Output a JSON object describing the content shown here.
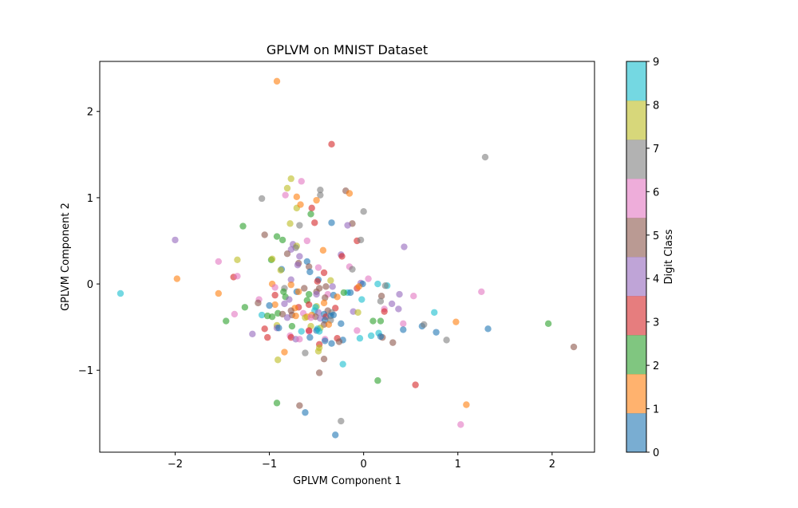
{
  "chart_data": {
    "type": "scatter",
    "title": "GPLVM on MNIST Dataset",
    "xlabel": "GPLVM Component 1",
    "ylabel": "GPLVM Component 2",
    "xlim": [
      -2.8,
      2.45
    ],
    "ylim": [
      -1.95,
      2.58
    ],
    "xticks": [
      -2,
      -1,
      0,
      1,
      2
    ],
    "yticks": [
      -1,
      0,
      1,
      2
    ],
    "grid": false,
    "colorbar": {
      "label": "Digit Class",
      "ticks": [
        0,
        1,
        2,
        3,
        4,
        5,
        6,
        7,
        8,
        9
      ],
      "colors": [
        "#1f77b4",
        "#ff7f0e",
        "#2ca02c",
        "#d62728",
        "#9467bd",
        "#8c564b",
        "#e377c2",
        "#7f7f7f",
        "#bcbd22",
        "#17becf"
      ]
    },
    "point_alpha": 0.6,
    "points": [
      {
        "x": -0.92,
        "y": 2.35,
        "c": 1
      },
      {
        "x": -0.34,
        "y": 1.62,
        "c": 3
      },
      {
        "x": 1.29,
        "y": 1.47,
        "c": 7
      },
      {
        "x": -0.77,
        "y": 1.22,
        "c": 8
      },
      {
        "x": -0.66,
        "y": 1.19,
        "c": 6
      },
      {
        "x": -0.81,
        "y": 1.11,
        "c": 8
      },
      {
        "x": -0.46,
        "y": 1.09,
        "c": 7
      },
      {
        "x": -0.19,
        "y": 1.08,
        "c": 5
      },
      {
        "x": -0.15,
        "y": 1.05,
        "c": 1
      },
      {
        "x": -0.83,
        "y": 1.03,
        "c": 6
      },
      {
        "x": -0.46,
        "y": 1.03,
        "c": 7
      },
      {
        "x": -0.71,
        "y": 1.01,
        "c": 1
      },
      {
        "x": -1.08,
        "y": 0.99,
        "c": 7
      },
      {
        "x": -0.5,
        "y": 0.97,
        "c": 1
      },
      {
        "x": -0.71,
        "y": 0.88,
        "c": 8
      },
      {
        "x": -0.67,
        "y": 0.92,
        "c": 1
      },
      {
        "x": -0.55,
        "y": 0.88,
        "c": 3
      },
      {
        "x": 0.0,
        "y": 0.84,
        "c": 7
      },
      {
        "x": -0.56,
        "y": 0.81,
        "c": 2
      },
      {
        "x": -0.52,
        "y": 0.71,
        "c": 3
      },
      {
        "x": -0.34,
        "y": 0.71,
        "c": 0
      },
      {
        "x": -0.78,
        "y": 0.7,
        "c": 8
      },
      {
        "x": -0.68,
        "y": 0.68,
        "c": 7
      },
      {
        "x": -0.12,
        "y": 0.7,
        "c": 5
      },
      {
        "x": -0.17,
        "y": 0.68,
        "c": 4
      },
      {
        "x": -1.28,
        "y": 0.67,
        "c": 2
      },
      {
        "x": -1.05,
        "y": 0.57,
        "c": 5
      },
      {
        "x": -0.92,
        "y": 0.55,
        "c": 2
      },
      {
        "x": -0.6,
        "y": 0.5,
        "c": 6
      },
      {
        "x": -0.86,
        "y": 0.51,
        "c": 2
      },
      {
        "x": -2.0,
        "y": 0.51,
        "c": 4
      },
      {
        "x": -0.07,
        "y": 0.5,
        "c": 3
      },
      {
        "x": -0.03,
        "y": 0.51,
        "c": 7
      },
      {
        "x": -0.75,
        "y": 0.46,
        "c": 4
      },
      {
        "x": 0.43,
        "y": 0.43,
        "c": 4
      },
      {
        "x": -0.71,
        "y": 0.44,
        "c": 8
      },
      {
        "x": -0.72,
        "y": 0.42,
        "c": 7
      },
      {
        "x": -0.43,
        "y": 0.39,
        "c": 1
      },
      {
        "x": -0.77,
        "y": 0.4,
        "c": 4
      },
      {
        "x": -0.81,
        "y": 0.35,
        "c": 5
      },
      {
        "x": -0.24,
        "y": 0.34,
        "c": 4
      },
      {
        "x": -0.23,
        "y": 0.32,
        "c": 3
      },
      {
        "x": -0.68,
        "y": 0.32,
        "c": 4
      },
      {
        "x": -1.34,
        "y": 0.28,
        "c": 8
      },
      {
        "x": -0.98,
        "y": 0.28,
        "c": 2
      },
      {
        "x": -0.97,
        "y": 0.29,
        "c": 8
      },
      {
        "x": -0.6,
        "y": 0.26,
        "c": 0
      },
      {
        "x": -1.54,
        "y": 0.26,
        "c": 6
      },
      {
        "x": -0.69,
        "y": 0.24,
        "c": 5
      },
      {
        "x": -0.7,
        "y": 0.22,
        "c": 4
      },
      {
        "x": -0.58,
        "y": 0.2,
        "c": 5
      },
      {
        "x": -0.15,
        "y": 0.2,
        "c": 6
      },
      {
        "x": -0.48,
        "y": 0.19,
        "c": 6
      },
      {
        "x": -0.87,
        "y": 0.17,
        "c": 0
      },
      {
        "x": -0.12,
        "y": 0.17,
        "c": 7
      },
      {
        "x": -0.88,
        "y": 0.16,
        "c": 8
      },
      {
        "x": -0.57,
        "y": 0.14,
        "c": 0
      },
      {
        "x": -0.42,
        "y": 0.13,
        "c": 3
      },
      {
        "x": -1.38,
        "y": 0.08,
        "c": 3
      },
      {
        "x": -1.34,
        "y": 0.09,
        "c": 6
      },
      {
        "x": -1.98,
        "y": 0.06,
        "c": 1
      },
      {
        "x": 0.05,
        "y": 0.06,
        "c": 6
      },
      {
        "x": -0.77,
        "y": 0.05,
        "c": 4
      },
      {
        "x": -0.48,
        "y": 0.05,
        "c": 0
      },
      {
        "x": -0.35,
        "y": 0.04,
        "c": 8
      },
      {
        "x": -0.49,
        "y": 0.03,
        "c": 3
      },
      {
        "x": -0.97,
        "y": 0.0,
        "c": 1
      },
      {
        "x": -0.03,
        "y": 0.01,
        "c": 4
      },
      {
        "x": -0.01,
        "y": 0.0,
        "c": 0
      },
      {
        "x": 0.15,
        "y": 0.0,
        "c": 9
      },
      {
        "x": 0.25,
        "y": -0.02,
        "c": 9
      },
      {
        "x": 0.23,
        "y": -0.02,
        "c": 7
      },
      {
        "x": -0.77,
        "y": -0.01,
        "c": 1
      },
      {
        "x": -0.94,
        "y": -0.04,
        "c": 6
      },
      {
        "x": -0.84,
        "y": -0.05,
        "c": 7
      },
      {
        "x": -0.63,
        "y": -0.05,
        "c": 5
      },
      {
        "x": -0.4,
        "y": -0.03,
        "c": 5
      },
      {
        "x": -0.07,
        "y": -0.05,
        "c": 3
      },
      {
        "x": -0.33,
        "y": -0.03,
        "c": 4
      },
      {
        "x": -0.47,
        "y": -0.05,
        "c": 5
      },
      {
        "x": -0.05,
        "y": -0.03,
        "c": 1
      },
      {
        "x": -0.85,
        "y": -0.09,
        "c": 2
      },
      {
        "x": -0.71,
        "y": -0.09,
        "c": 0
      },
      {
        "x": -0.69,
        "y": -0.09,
        "c": 1
      },
      {
        "x": -0.5,
        "y": -0.09,
        "c": 5
      },
      {
        "x": -0.17,
        "y": -0.1,
        "c": 9
      },
      {
        "x": -0.14,
        "y": -0.1,
        "c": 0
      },
      {
        "x": -0.21,
        "y": -0.1,
        "c": 2
      },
      {
        "x": -2.58,
        "y": -0.11,
        "c": 9
      },
      {
        "x": -1.54,
        "y": -0.11,
        "c": 1
      },
      {
        "x": -0.94,
        "y": -0.13,
        "c": 3
      },
      {
        "x": -0.83,
        "y": -0.15,
        "c": 2
      },
      {
        "x": -0.58,
        "y": -0.12,
        "c": 2
      },
      {
        "x": -0.5,
        "y": -0.12,
        "c": 4
      },
      {
        "x": -0.38,
        "y": -0.12,
        "c": 6
      },
      {
        "x": -0.32,
        "y": -0.13,
        "c": 0
      },
      {
        "x": 0.19,
        "y": -0.14,
        "c": 5
      },
      {
        "x": 0.38,
        "y": -0.12,
        "c": 4
      },
      {
        "x": 0.53,
        "y": -0.14,
        "c": 6
      },
      {
        "x": 1.25,
        "y": -0.09,
        "c": 6
      },
      {
        "x": -1.11,
        "y": -0.18,
        "c": 6
      },
      {
        "x": -0.02,
        "y": -0.18,
        "c": 9
      },
      {
        "x": -0.41,
        "y": -0.16,
        "c": 5
      },
      {
        "x": -0.28,
        "y": -0.15,
        "c": 1
      },
      {
        "x": -0.79,
        "y": -0.18,
        "c": 4
      },
      {
        "x": -0.6,
        "y": -0.19,
        "c": 2
      },
      {
        "x": 0.18,
        "y": -0.2,
        "c": 7
      },
      {
        "x": -1.12,
        "y": -0.22,
        "c": 5
      },
      {
        "x": -0.42,
        "y": -0.22,
        "c": 1
      },
      {
        "x": 0.3,
        "y": -0.23,
        "c": 4
      },
      {
        "x": -0.84,
        "y": -0.23,
        "c": 4
      },
      {
        "x": -0.58,
        "y": -0.24,
        "c": 3
      },
      {
        "x": -0.94,
        "y": -0.24,
        "c": 1
      },
      {
        "x": -1.0,
        "y": -0.25,
        "c": 0
      },
      {
        "x": -0.5,
        "y": -0.26,
        "c": 8
      },
      {
        "x": -1.26,
        "y": -0.27,
        "c": 2
      },
      {
        "x": -0.51,
        "y": -0.27,
        "c": 9
      },
      {
        "x": -0.69,
        "y": -0.27,
        "c": 3
      },
      {
        "x": -0.73,
        "y": -0.28,
        "c": 1
      },
      {
        "x": -0.3,
        "y": -0.28,
        "c": 3
      },
      {
        "x": 0.37,
        "y": -0.29,
        "c": 4
      },
      {
        "x": 0.22,
        "y": -0.29,
        "c": 6
      },
      {
        "x": -0.77,
        "y": -0.31,
        "c": 5
      },
      {
        "x": -0.52,
        "y": -0.31,
        "c": 9
      },
      {
        "x": -0.48,
        "y": -0.33,
        "c": 4
      },
      {
        "x": -0.38,
        "y": -0.31,
        "c": 5
      },
      {
        "x": 0.22,
        "y": -0.32,
        "c": 3
      },
      {
        "x": -0.34,
        "y": -0.33,
        "c": 7
      },
      {
        "x": -0.11,
        "y": -0.32,
        "c": 4
      },
      {
        "x": -0.06,
        "y": -0.33,
        "c": 8
      },
      {
        "x": 0.75,
        "y": -0.33,
        "c": 9
      },
      {
        "x": -1.37,
        "y": -0.35,
        "c": 6
      },
      {
        "x": -0.91,
        "y": -0.34,
        "c": 2
      },
      {
        "x": -0.86,
        "y": -0.35,
        "c": 5
      },
      {
        "x": -0.64,
        "y": -0.34,
        "c": 6
      },
      {
        "x": -0.55,
        "y": -0.36,
        "c": 1
      },
      {
        "x": -0.42,
        "y": -0.35,
        "c": 0
      },
      {
        "x": -1.08,
        "y": -0.36,
        "c": 9
      },
      {
        "x": -0.76,
        "y": -0.36,
        "c": 5
      },
      {
        "x": -0.72,
        "y": -0.37,
        "c": 1
      },
      {
        "x": -0.6,
        "y": -0.38,
        "c": 1
      },
      {
        "x": -0.51,
        "y": -0.38,
        "c": 5
      },
      {
        "x": -0.62,
        "y": -0.39,
        "c": 8
      },
      {
        "x": -0.4,
        "y": -0.38,
        "c": 3
      },
      {
        "x": -0.35,
        "y": -0.37,
        "c": 0
      },
      {
        "x": -0.32,
        "y": -0.36,
        "c": 0
      },
      {
        "x": -1.02,
        "y": -0.37,
        "c": 2
      },
      {
        "x": -0.97,
        "y": -0.38,
        "c": 2
      },
      {
        "x": -0.81,
        "y": -0.39,
        "c": 4
      },
      {
        "x": -0.56,
        "y": -0.39,
        "c": 6
      },
      {
        "x": -0.46,
        "y": -0.4,
        "c": 4
      },
      {
        "x": -1.46,
        "y": -0.43,
        "c": 2
      },
      {
        "x": -0.41,
        "y": -0.42,
        "c": 0
      },
      {
        "x": -0.35,
        "y": -0.42,
        "c": 7
      },
      {
        "x": 0.1,
        "y": -0.43,
        "c": 2
      },
      {
        "x": 0.18,
        "y": -0.43,
        "c": 2
      },
      {
        "x": 0.98,
        "y": -0.44,
        "c": 1
      },
      {
        "x": 1.96,
        "y": -0.46,
        "c": 2
      },
      {
        "x": -0.24,
        "y": -0.46,
        "c": 0
      },
      {
        "x": -0.92,
        "y": -0.48,
        "c": 8
      },
      {
        "x": -0.42,
        "y": -0.47,
        "c": 5
      },
      {
        "x": -0.37,
        "y": -0.47,
        "c": 1
      },
      {
        "x": -0.76,
        "y": -0.49,
        "c": 2
      },
      {
        "x": -0.56,
        "y": -0.49,
        "c": 8
      },
      {
        "x": -0.46,
        "y": -0.51,
        "c": 8
      },
      {
        "x": 0.42,
        "y": -0.46,
        "c": 6
      },
      {
        "x": 0.62,
        "y": -0.49,
        "c": 0
      },
      {
        "x": 0.64,
        "y": -0.47,
        "c": 7
      },
      {
        "x": -1.05,
        "y": -0.52,
        "c": 3
      },
      {
        "x": -0.92,
        "y": -0.51,
        "c": 4
      },
      {
        "x": -0.9,
        "y": -0.51,
        "c": 0
      },
      {
        "x": -0.49,
        "y": -0.52,
        "c": 9
      },
      {
        "x": -0.5,
        "y": -0.54,
        "c": 0
      },
      {
        "x": -0.58,
        "y": -0.55,
        "c": 6
      },
      {
        "x": -0.58,
        "y": -0.54,
        "c": 3
      },
      {
        "x": -0.66,
        "y": -0.55,
        "c": 9
      },
      {
        "x": -0.47,
        "y": -0.55,
        "c": 9
      },
      {
        "x": 0.42,
        "y": -0.53,
        "c": 0
      },
      {
        "x": 1.32,
        "y": -0.52,
        "c": 0
      },
      {
        "x": -0.07,
        "y": -0.54,
        "c": 6
      },
      {
        "x": 0.77,
        "y": -0.56,
        "c": 0
      },
      {
        "x": -1.18,
        "y": -0.58,
        "c": 4
      },
      {
        "x": 0.16,
        "y": -0.57,
        "c": 9
      },
      {
        "x": -0.78,
        "y": -0.6,
        "c": 6
      },
      {
        "x": 0.08,
        "y": -0.6,
        "c": 9
      },
      {
        "x": 0.2,
        "y": -0.62,
        "c": 5
      },
      {
        "x": 0.18,
        "y": -0.61,
        "c": 0
      },
      {
        "x": -1.02,
        "y": -0.62,
        "c": 3
      },
      {
        "x": -0.57,
        "y": -0.62,
        "c": 0
      },
      {
        "x": -0.77,
        "y": -0.62,
        "c": 3
      },
      {
        "x": -0.04,
        "y": -0.63,
        "c": 9
      },
      {
        "x": -0.72,
        "y": -0.64,
        "c": 4
      },
      {
        "x": -0.68,
        "y": -0.64,
        "c": 6
      },
      {
        "x": -0.41,
        "y": -0.64,
        "c": 6
      },
      {
        "x": -0.28,
        "y": -0.63,
        "c": 3
      },
      {
        "x": -0.22,
        "y": -0.65,
        "c": 0
      },
      {
        "x": 0.88,
        "y": -0.65,
        "c": 7
      },
      {
        "x": -0.41,
        "y": -0.66,
        "c": 0
      },
      {
        "x": -0.26,
        "y": -0.67,
        "c": 5
      },
      {
        "x": 0.31,
        "y": -0.68,
        "c": 5
      },
      {
        "x": -0.34,
        "y": -0.69,
        "c": 0
      },
      {
        "x": -0.47,
        "y": -0.7,
        "c": 3
      },
      {
        "x": 2.23,
        "y": -0.73,
        "c": 5
      },
      {
        "x": -0.47,
        "y": -0.74,
        "c": 8
      },
      {
        "x": -0.84,
        "y": -0.79,
        "c": 1
      },
      {
        "x": -0.62,
        "y": -0.8,
        "c": 7
      },
      {
        "x": -0.48,
        "y": -0.78,
        "c": 8
      },
      {
        "x": -0.42,
        "y": -0.87,
        "c": 5
      },
      {
        "x": -0.91,
        "y": -0.88,
        "c": 8
      },
      {
        "x": -0.22,
        "y": -0.93,
        "c": 9
      },
      {
        "x": -0.47,
        "y": -1.03,
        "c": 5
      },
      {
        "x": 0.15,
        "y": -1.12,
        "c": 2
      },
      {
        "x": 0.55,
        "y": -1.17,
        "c": 3
      },
      {
        "x": -0.92,
        "y": -1.38,
        "c": 2
      },
      {
        "x": -0.68,
        "y": -1.41,
        "c": 5
      },
      {
        "x": 1.09,
        "y": -1.4,
        "c": 1
      },
      {
        "x": -0.62,
        "y": -1.49,
        "c": 0
      },
      {
        "x": -0.24,
        "y": -1.59,
        "c": 7
      },
      {
        "x": 1.03,
        "y": -1.63,
        "c": 6
      },
      {
        "x": -0.3,
        "y": -1.75,
        "c": 0
      }
    ]
  }
}
